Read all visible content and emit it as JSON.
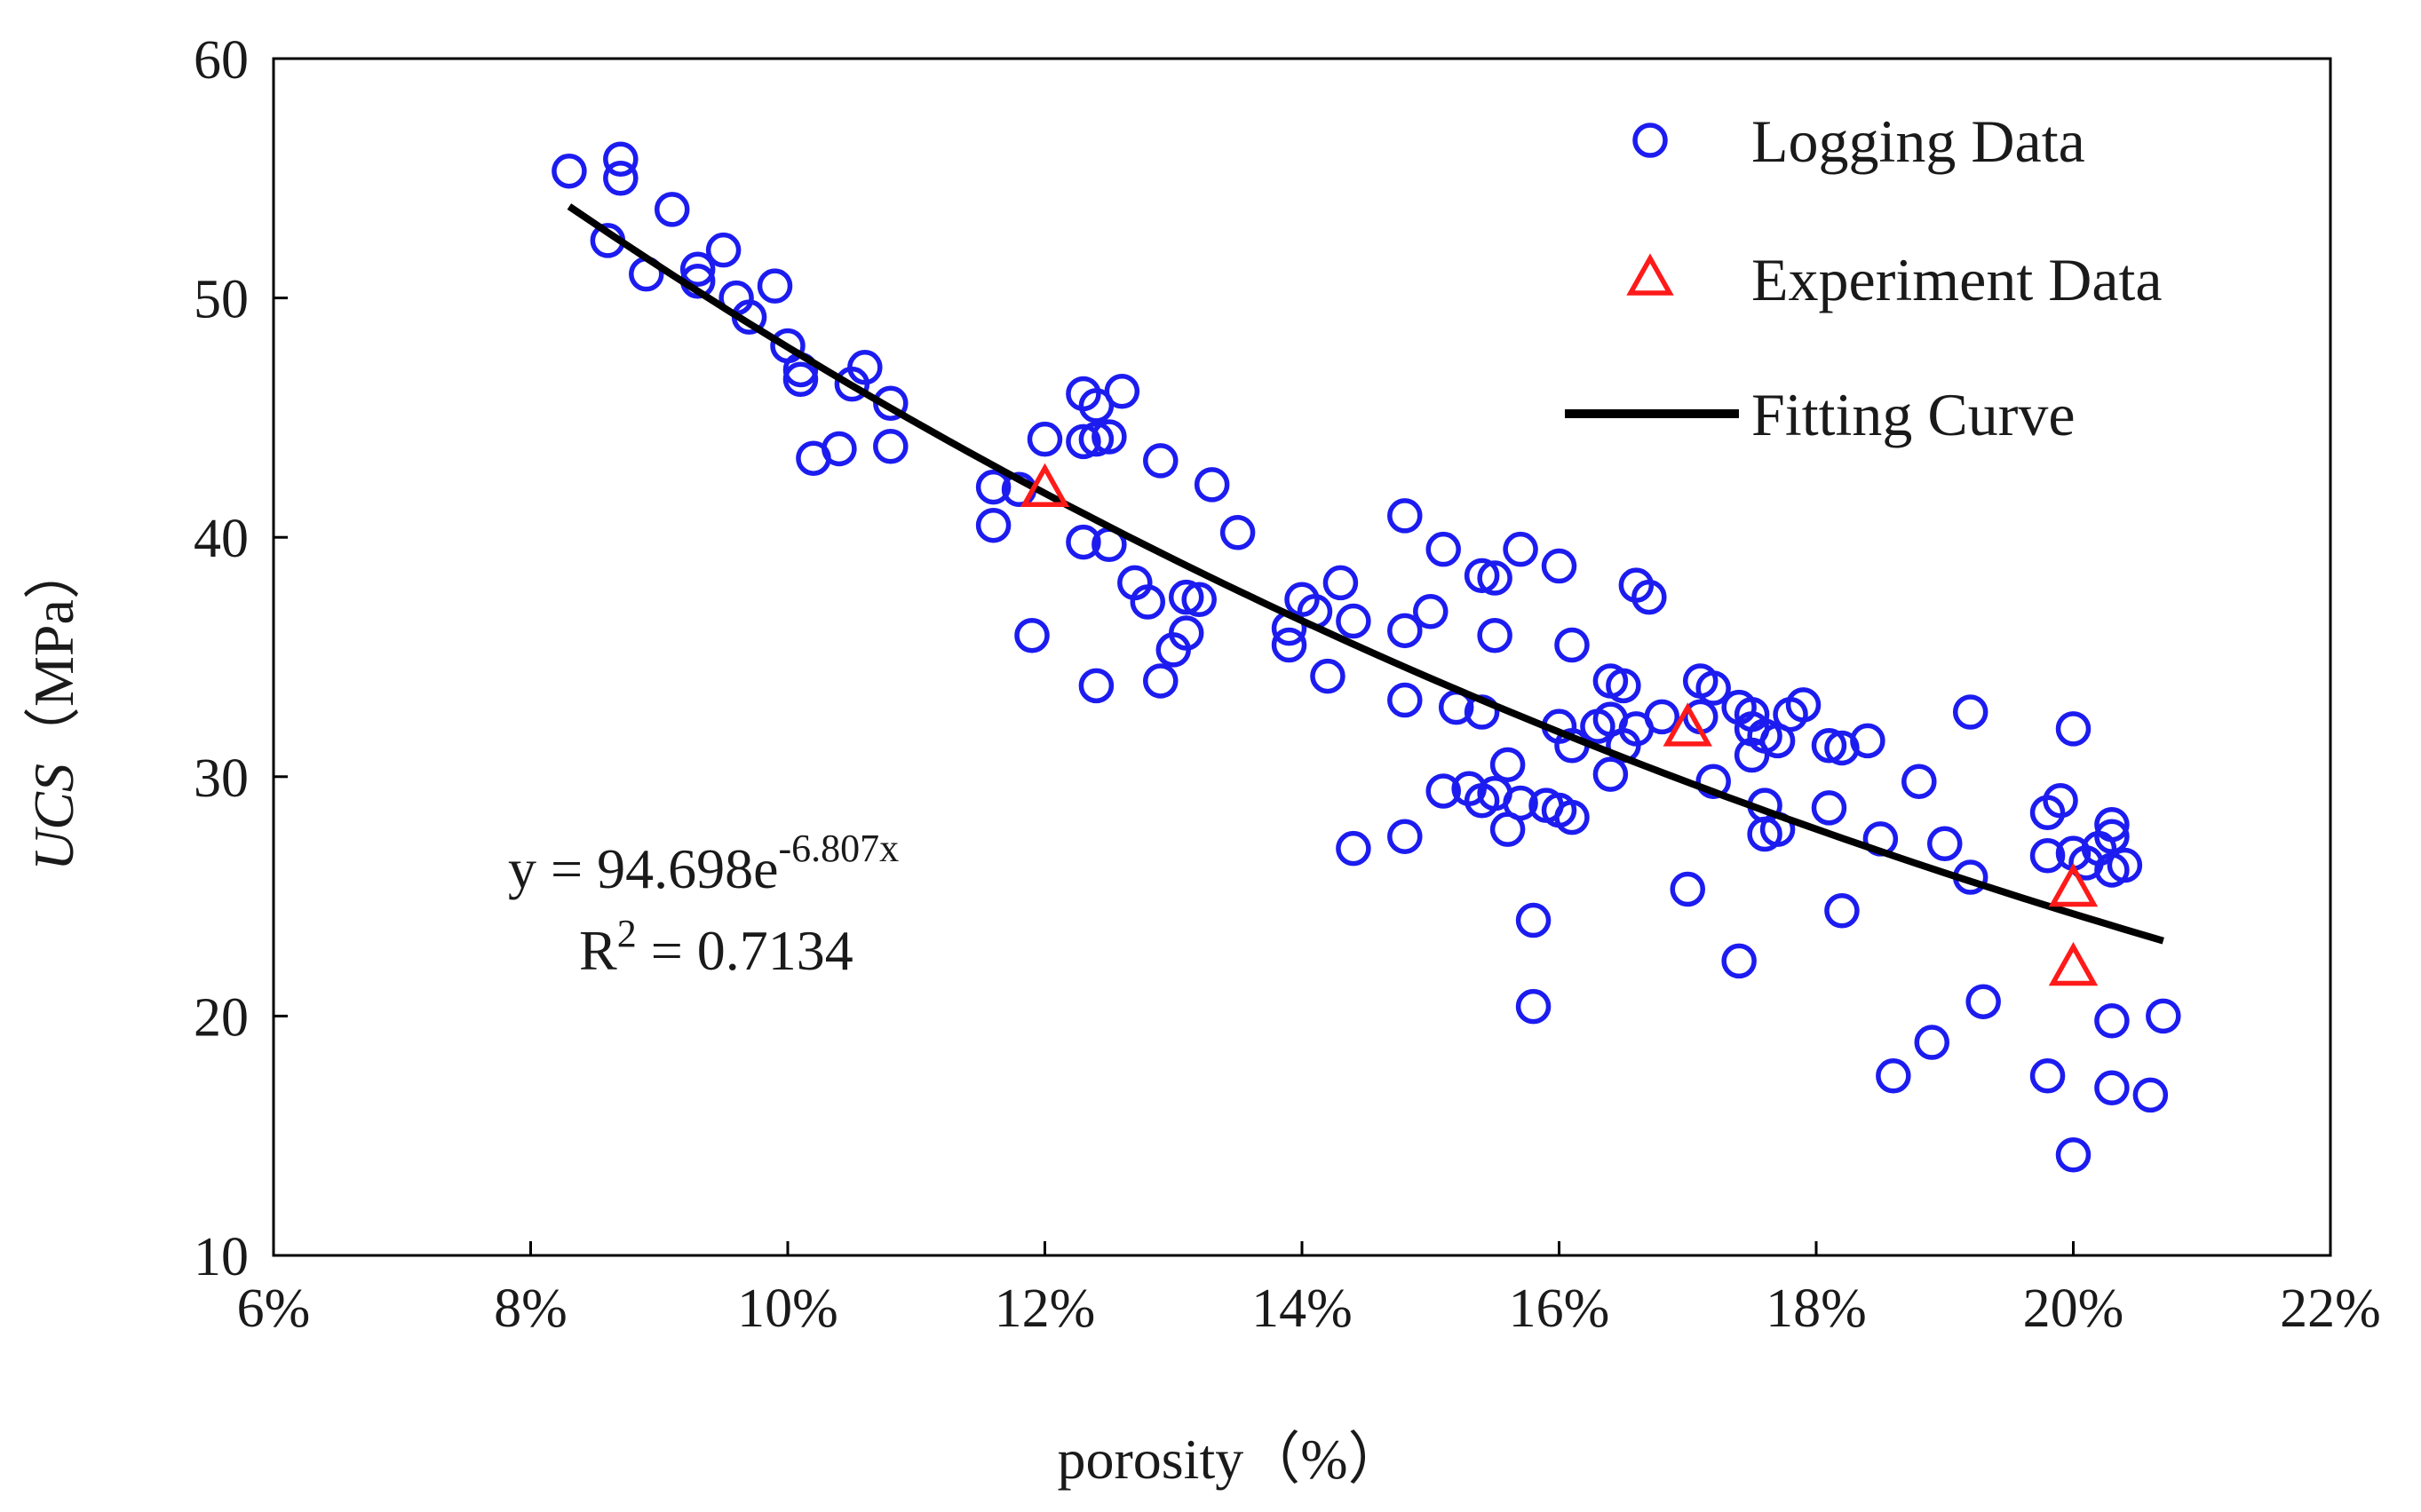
{
  "chart_data": {
    "type": "scatter",
    "xlabel": "porosity（%）",
    "ylabel_italic": "UCS",
    "ylabel_unit": "（MPa）",
    "xlim": [
      0.06,
      0.22
    ],
    "ylim": [
      10,
      60
    ],
    "x_ticks": [
      0.06,
      0.08,
      0.1,
      0.12,
      0.14,
      0.16,
      0.18,
      0.2,
      0.22
    ],
    "x_tick_labels": [
      "6%",
      "8%",
      "10%",
      "12%",
      "14%",
      "16%",
      "18%",
      "20%",
      "22%"
    ],
    "y_ticks": [
      10,
      20,
      30,
      40,
      50,
      60
    ],
    "y_tick_labels": [
      "10",
      "20",
      "30",
      "40",
      "50",
      "60"
    ],
    "grid": false,
    "legend_position": "top-right",
    "colors": {
      "logging": "#1c1cf0",
      "experiment": "#ff1a1a",
      "curve": "#000000"
    },
    "legend": {
      "logging": "Logging Data",
      "experiment": "Experiment Data",
      "curve": "Fitting  Curve"
    },
    "equation": {
      "y_prefix": "y = 94.698e",
      "exponent": "-6.807x",
      "r2_prefix": "R",
      "r2_sup": "2",
      "r2_value": " = 0.7134"
    },
    "fit": {
      "a": 94.698,
      "b": -6.807,
      "x_range": [
        0.083,
        0.207
      ],
      "r2": 0.7134
    },
    "series": [
      {
        "name": "Logging Data",
        "marker": "circle",
        "points": [
          [
            0.083,
            55.3
          ],
          [
            0.087,
            55.8
          ],
          [
            0.087,
            55.0
          ],
          [
            0.086,
            52.4
          ],
          [
            0.089,
            51.0
          ],
          [
            0.091,
            53.7
          ],
          [
            0.093,
            50.7
          ],
          [
            0.093,
            51.2
          ],
          [
            0.095,
            52.0
          ],
          [
            0.096,
            50.0
          ],
          [
            0.097,
            49.2
          ],
          [
            0.099,
            50.5
          ],
          [
            0.1,
            48.0
          ],
          [
            0.101,
            47.0
          ],
          [
            0.101,
            46.6
          ],
          [
            0.102,
            43.3
          ],
          [
            0.104,
            43.7
          ],
          [
            0.105,
            46.4
          ],
          [
            0.106,
            47.1
          ],
          [
            0.108,
            45.6
          ],
          [
            0.108,
            43.8
          ],
          [
            0.116,
            42.1
          ],
          [
            0.116,
            40.5
          ],
          [
            0.118,
            42.0
          ],
          [
            0.119,
            35.9
          ],
          [
            0.12,
            44.1
          ],
          [
            0.123,
            39.8
          ],
          [
            0.123,
            44.0
          ],
          [
            0.123,
            46.0
          ],
          [
            0.124,
            44.1
          ],
          [
            0.124,
            45.5
          ],
          [
            0.125,
            39.7
          ],
          [
            0.125,
            44.2
          ],
          [
            0.126,
            46.1
          ],
          [
            0.124,
            33.8
          ],
          [
            0.127,
            38.1
          ],
          [
            0.128,
            37.3
          ],
          [
            0.129,
            43.2
          ],
          [
            0.129,
            34.0
          ],
          [
            0.13,
            35.3
          ],
          [
            0.131,
            37.5
          ],
          [
            0.131,
            36.0
          ],
          [
            0.132,
            37.4
          ],
          [
            0.133,
            42.2
          ],
          [
            0.135,
            40.2
          ],
          [
            0.139,
            36.2
          ],
          [
            0.139,
            35.5
          ],
          [
            0.14,
            37.4
          ],
          [
            0.141,
            36.9
          ],
          [
            0.142,
            34.2
          ],
          [
            0.143,
            38.1
          ],
          [
            0.144,
            36.5
          ],
          [
            0.144,
            27.0
          ],
          [
            0.148,
            40.9
          ],
          [
            0.148,
            36.1
          ],
          [
            0.148,
            33.2
          ],
          [
            0.148,
            27.5
          ],
          [
            0.15,
            36.9
          ],
          [
            0.151,
            39.5
          ],
          [
            0.151,
            29.4
          ],
          [
            0.152,
            32.9
          ],
          [
            0.153,
            29.5
          ],
          [
            0.154,
            29.0
          ],
          [
            0.154,
            38.4
          ],
          [
            0.154,
            32.7
          ],
          [
            0.155,
            38.3
          ],
          [
            0.155,
            35.9
          ],
          [
            0.155,
            29.3
          ],
          [
            0.156,
            30.5
          ],
          [
            0.156,
            27.8
          ],
          [
            0.157,
            39.5
          ],
          [
            0.157,
            28.9
          ],
          [
            0.158,
            24.0
          ],
          [
            0.158,
            20.4
          ],
          [
            0.159,
            28.8
          ],
          [
            0.16,
            38.8
          ],
          [
            0.16,
            32.1
          ],
          [
            0.16,
            28.6
          ],
          [
            0.161,
            31.3
          ],
          [
            0.161,
            28.3
          ],
          [
            0.161,
            35.5
          ],
          [
            0.163,
            32.1
          ],
          [
            0.164,
            34.0
          ],
          [
            0.164,
            32.4
          ],
          [
            0.165,
            33.8
          ],
          [
            0.164,
            30.1
          ],
          [
            0.165,
            31.3
          ],
          [
            0.166,
            38.0
          ],
          [
            0.166,
            32.0
          ],
          [
            0.167,
            37.5
          ],
          [
            0.168,
            32.5
          ],
          [
            0.17,
            25.3
          ],
          [
            0.171,
            34.0
          ],
          [
            0.171,
            32.5
          ],
          [
            0.172,
            33.7
          ],
          [
            0.172,
            29.8
          ],
          [
            0.174,
            32.9
          ],
          [
            0.174,
            22.3
          ],
          [
            0.175,
            32.6
          ],
          [
            0.175,
            30.9
          ],
          [
            0.175,
            32.0
          ],
          [
            0.176,
            31.7
          ],
          [
            0.176,
            28.8
          ],
          [
            0.176,
            27.6
          ],
          [
            0.177,
            31.5
          ],
          [
            0.177,
            27.8
          ],
          [
            0.178,
            32.6
          ],
          [
            0.179,
            33.0
          ],
          [
            0.181,
            28.7
          ],
          [
            0.181,
            31.3
          ],
          [
            0.182,
            31.2
          ],
          [
            0.182,
            24.4
          ],
          [
            0.184,
            31.5
          ],
          [
            0.185,
            27.4
          ],
          [
            0.186,
            17.5
          ],
          [
            0.188,
            29.8
          ],
          [
            0.189,
            18.9
          ],
          [
            0.19,
            27.2
          ],
          [
            0.192,
            32.7
          ],
          [
            0.192,
            25.8
          ],
          [
            0.193,
            20.6
          ],
          [
            0.198,
            28.5
          ],
          [
            0.198,
            26.7
          ],
          [
            0.198,
            17.5
          ],
          [
            0.199,
            29.0
          ],
          [
            0.2,
            32.0
          ],
          [
            0.2,
            26.8
          ],
          [
            0.2,
            14.2
          ],
          [
            0.201,
            26.4
          ],
          [
            0.202,
            27.0
          ],
          [
            0.203,
            26.1
          ],
          [
            0.203,
            27.5
          ],
          [
            0.203,
            28.0
          ],
          [
            0.203,
            19.8
          ],
          [
            0.204,
            26.3
          ],
          [
            0.203,
            17.0
          ],
          [
            0.206,
            16.7
          ],
          [
            0.207,
            20.0
          ]
        ]
      },
      {
        "name": "Experiment Data",
        "marker": "triangle",
        "points": [
          [
            0.12,
            42.0
          ],
          [
            0.17,
            32.0
          ],
          [
            0.2,
            25.3
          ],
          [
            0.2,
            22.0
          ]
        ]
      }
    ]
  }
}
